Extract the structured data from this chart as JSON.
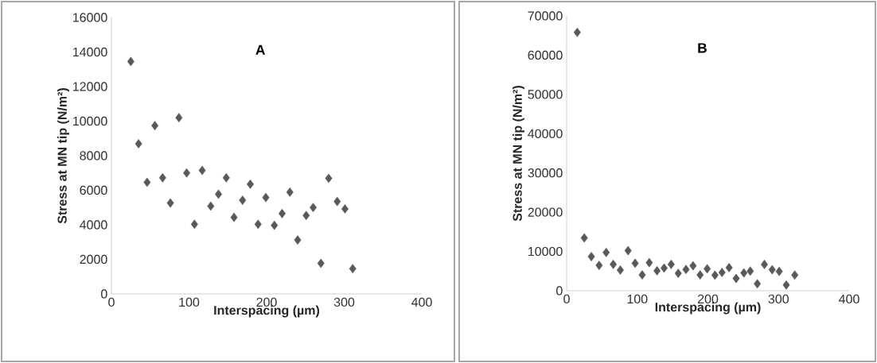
{
  "chart_data": [
    {
      "type": "scatter",
      "title": "A",
      "xlabel": "Interspacing (µm)",
      "ylabel": "Stress at MN tip (N/m²)",
      "xlim": [
        0,
        400
      ],
      "ylim": [
        0,
        16000
      ],
      "xticks": [
        0,
        100,
        200,
        300,
        400
      ],
      "yticks": [
        0,
        2000,
        4000,
        6000,
        8000,
        10000,
        12000,
        14000,
        16000
      ],
      "marker": "diamond",
      "series": [
        {
          "color": "#595959",
          "x": [
            25,
            35,
            46,
            56,
            66,
            76,
            87,
            97,
            107,
            117,
            128,
            138,
            148,
            158,
            169,
            179,
            189,
            199,
            210,
            220,
            230,
            240,
            251,
            260,
            270,
            280,
            291,
            301,
            311
          ],
          "values": [
            13450,
            8690,
            6460,
            9740,
            6720,
            5260,
            10200,
            7000,
            4030,
            7150,
            5080,
            5770,
            6720,
            4430,
            5420,
            6350,
            4030,
            5580,
            3970,
            4650,
            5890,
            3120,
            4540,
            5000,
            1770,
            6690,
            5350,
            4920,
            1460
          ]
        }
      ]
    },
    {
      "type": "scatter",
      "title": "B",
      "xlabel": "Interspacing (µm)",
      "ylabel": "Stress at MN tip (N/m²)",
      "xlim": [
        0,
        400
      ],
      "ylim": [
        0,
        70000
      ],
      "xticks": [
        0,
        100,
        200,
        300,
        400
      ],
      "yticks": [
        0,
        10000,
        20000,
        30000,
        40000,
        50000,
        60000,
        70000
      ],
      "marker": "diamond",
      "series": [
        {
          "color": "#595959",
          "x": [
            15,
            25,
            35,
            46,
            56,
            66,
            76,
            87,
            97,
            107,
            117,
            128,
            138,
            148,
            158,
            169,
            179,
            189,
            199,
            210,
            220,
            230,
            240,
            251,
            260,
            270,
            280,
            291,
            301,
            311,
            323
          ],
          "values": [
            65800,
            13450,
            8690,
            6460,
            9740,
            6720,
            5260,
            10200,
            7000,
            4030,
            7150,
            5080,
            5770,
            6720,
            4430,
            5420,
            6350,
            4030,
            5580,
            3970,
            4650,
            5890,
            3120,
            4540,
            5000,
            1770,
            6690,
            5350,
            4920,
            1460,
            4000
          ]
        }
      ]
    }
  ]
}
